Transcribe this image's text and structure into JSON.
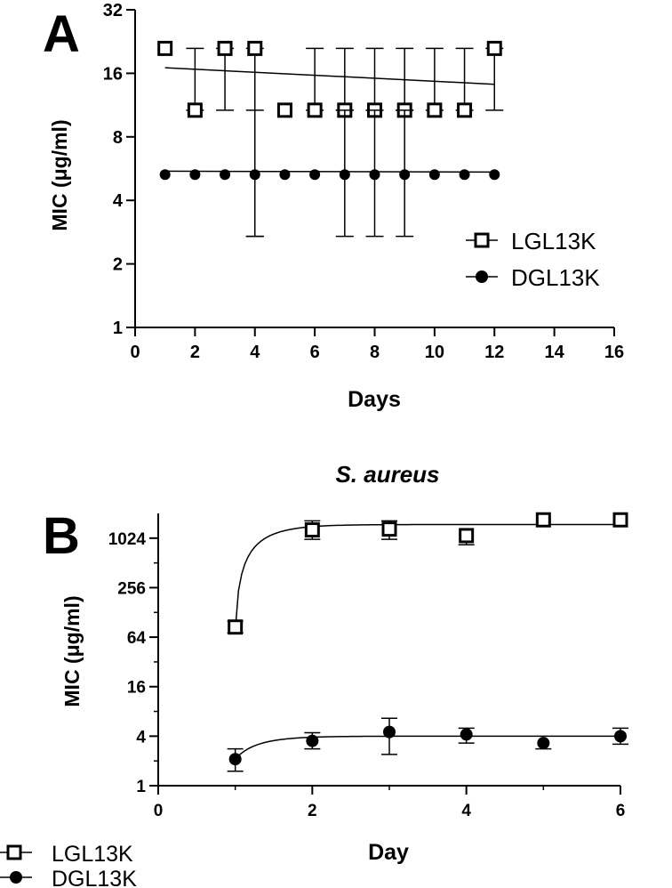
{
  "panels": [
    {
      "label": "A"
    },
    {
      "label": "B"
    }
  ],
  "chart_data": [
    {
      "type": "scatter",
      "panel": "A",
      "title": "",
      "xlabel": "Days",
      "ylabel": "MIC (μg/ml)",
      "xlim": [
        0,
        16
      ],
      "ylim": [
        1,
        32
      ],
      "y_scale": "log2",
      "x_ticks": [
        0,
        2,
        4,
        6,
        8,
        10,
        12,
        14,
        16
      ],
      "y_ticks": [
        1,
        2,
        4,
        8,
        16,
        32
      ],
      "grid": false,
      "legend_position": "right",
      "series": [
        {
          "name": "LGL13K",
          "marker": "open-square",
          "x": [
            1,
            2,
            3,
            4,
            5,
            6,
            7,
            8,
            9,
            10,
            11,
            12
          ],
          "y": [
            21,
            10.7,
            21,
            21,
            10.7,
            10.7,
            10.7,
            10.7,
            10.7,
            10.7,
            10.7,
            21
          ],
          "err_low": [
            null,
            10.7,
            10.7,
            2.7,
            null,
            10.7,
            10.7,
            10.7,
            10.7,
            10.7,
            10.7,
            10.7
          ],
          "err_high": [
            null,
            21,
            21,
            21,
            null,
            21,
            21,
            21,
            21,
            21,
            21,
            21
          ],
          "fit": {
            "kind": "linear",
            "x": [
              1,
              12
            ],
            "y": [
              17,
              14.2
            ]
          }
        },
        {
          "name": "DGL13K",
          "marker": "filled-circle",
          "x": [
            1,
            2,
            3,
            4,
            5,
            6,
            7,
            8,
            9,
            10,
            11,
            12
          ],
          "y": [
            5.3,
            5.3,
            5.3,
            5.3,
            5.3,
            5.3,
            5.3,
            5.3,
            5.3,
            5.3,
            5.3,
            5.3
          ],
          "err_low": [
            null,
            null,
            null,
            2.7,
            null,
            null,
            2.7,
            2.7,
            2.7,
            null,
            null,
            null
          ],
          "err_high": [
            null,
            null,
            null,
            10.7,
            null,
            null,
            10.7,
            10.7,
            10.7,
            null,
            null,
            null
          ],
          "fit": {
            "kind": "linear",
            "x": [
              1,
              12
            ],
            "y": [
              5.5,
              5.45
            ]
          }
        }
      ]
    },
    {
      "type": "scatter",
      "panel": "B",
      "title": "S. aureus",
      "xlabel": "Day",
      "ylabel": "MIC (μg/ml)",
      "xlim": [
        0,
        6
      ],
      "ylim": [
        1,
        2048
      ],
      "y_scale": "log2",
      "x_ticks": [
        0,
        2,
        4,
        6
      ],
      "y_ticks": [
        1,
        4,
        16,
        64,
        256,
        1024
      ],
      "grid": false,
      "legend_position": "bottom-left",
      "series": [
        {
          "name": "LGL13K",
          "marker": "open-square",
          "x": [
            1,
            2,
            3,
            4,
            5,
            6
          ],
          "y": [
            85,
            1290,
            1320,
            1100,
            1710,
            1710
          ],
          "err_low": [
            72,
            990,
            990,
            850,
            null,
            null
          ],
          "err_high": [
            100,
            1660,
            1660,
            null,
            null,
            null
          ],
          "fit": {
            "kind": "curve",
            "plateau": 1500,
            "start": 78,
            "rate": 2.8
          }
        },
        {
          "name": "DGL13K",
          "marker": "filled-circle",
          "x": [
            1,
            2,
            3,
            4,
            5,
            6
          ],
          "y": [
            2.1,
            3.5,
            4.5,
            4.2,
            3.3,
            4.0
          ],
          "err_low": [
            1.5,
            2.8,
            2.4,
            3.3,
            2.8,
            3.2
          ],
          "err_high": [
            2.8,
            4.4,
            6.6,
            5.0,
            null,
            5.0
          ],
          "fit": {
            "kind": "curve",
            "plateau": 4.0,
            "start": 2.1,
            "rate": 2.8
          }
        }
      ]
    }
  ]
}
